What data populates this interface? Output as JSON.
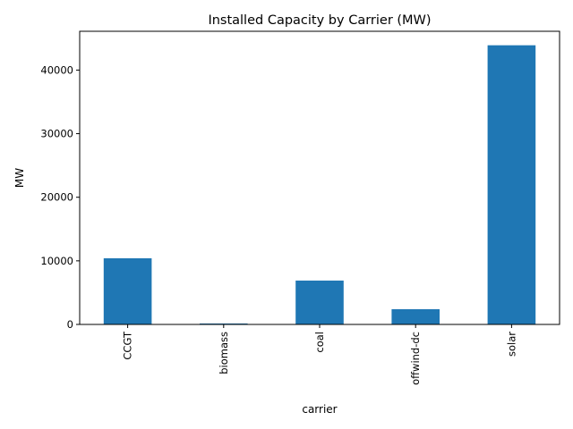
{
  "chart_data": {
    "type": "bar",
    "title": "Installed Capacity by Carrier (MW)",
    "xlabel": "carrier",
    "ylabel": "MW",
    "categories": [
      "CCGT",
      "biomass",
      "coal",
      "offwind-dc",
      "solar"
    ],
    "values": [
      10400,
      150,
      6900,
      2400,
      43900
    ],
    "ylim": [
      0,
      46100
    ],
    "yticks": [
      0,
      10000,
      20000,
      30000,
      40000
    ],
    "bar_color": "#1f77b4",
    "grid": false,
    "legend": "none"
  }
}
